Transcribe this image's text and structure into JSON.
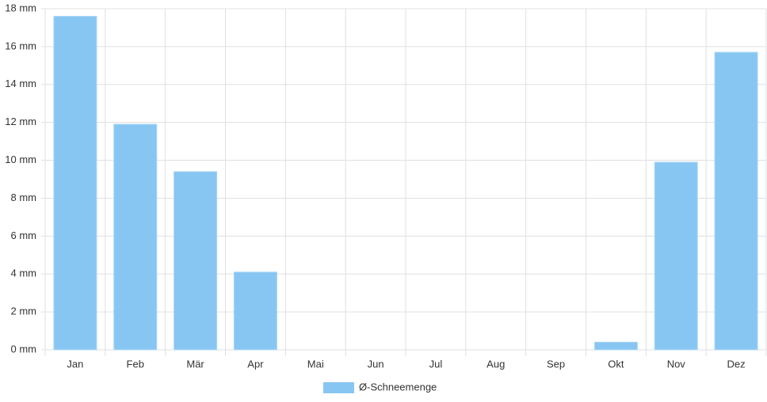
{
  "chart_data": {
    "type": "bar",
    "categories": [
      "Jan",
      "Feb",
      "Mär",
      "Apr",
      "Mai",
      "Jun",
      "Jul",
      "Aug",
      "Sep",
      "Okt",
      "Nov",
      "Dez"
    ],
    "series": [
      {
        "name": "Ø-Schneemenge",
        "color": "#87c6f3",
        "values": [
          17.6,
          11.9,
          9.4,
          4.1,
          0,
          0,
          0,
          0,
          0,
          0.4,
          9.9,
          15.7
        ]
      }
    ],
    "ylim": [
      0,
      18
    ],
    "yticks": [
      {
        "value": 0,
        "label": "0 mm"
      },
      {
        "value": 2,
        "label": "2 mm"
      },
      {
        "value": 4,
        "label": "4 mm"
      },
      {
        "value": 6,
        "label": "6 mm"
      },
      {
        "value": 8,
        "label": "8 mm"
      },
      {
        "value": 10,
        "label": "10 mm"
      },
      {
        "value": 12,
        "label": "12 mm"
      },
      {
        "value": 14,
        "label": "14 mm"
      },
      {
        "value": 16,
        "label": "16 mm"
      },
      {
        "value": 18,
        "label": "18 mm"
      }
    ],
    "grid": true,
    "legend": "bottom"
  }
}
